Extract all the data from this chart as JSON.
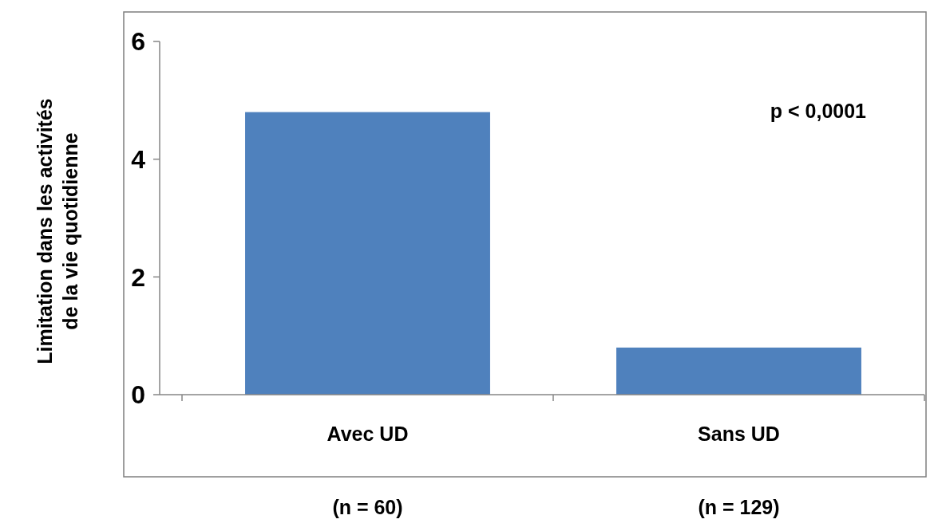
{
  "chart_data": {
    "type": "bar",
    "ylabel": "Limitation dans les activités\nde la vie quotidienne",
    "categories": [
      "Avec UD",
      "Sans UD"
    ],
    "values": [
      4.8,
      0.8
    ],
    "color": "#4f81bd",
    "ylim": [
      0,
      6
    ],
    "yticks": [
      0,
      2,
      4,
      6
    ],
    "grid": false,
    "annotations": [
      "p < 0,0001",
      "(n = 60)",
      "(n = 129)"
    ]
  }
}
